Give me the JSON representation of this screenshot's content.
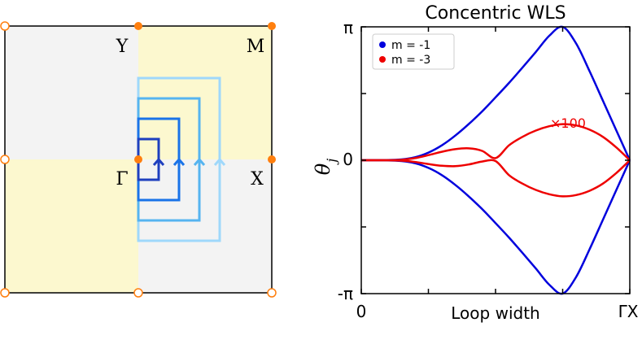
{
  "bz_panel": {
    "labels": {
      "Y": "Y",
      "M": "M",
      "Gamma": "Γ",
      "X": "X"
    },
    "colors": {
      "quadrant_yellow": "#fcf8cf",
      "quadrant_gray": "#f3f3f3",
      "filled_point": "#ff7f0e",
      "hollow_point": "#ff7f0e",
      "loops": [
        "#1e3fbf",
        "#1a73e8",
        "#56b4f0",
        "#9fd8fb"
      ]
    },
    "loop_count": 4
  },
  "chart_data": {
    "type": "line",
    "title": "Concentric WLS",
    "xlabel": "Loop width",
    "ylabel": "θ_j",
    "ylabel_main": "θ",
    "ylabel_sub": "j",
    "x_tick_labels": [
      "0",
      "ΓX"
    ],
    "y_tick_labels": [
      "-π",
      "0",
      "π"
    ],
    "xlim": [
      0,
      1
    ],
    "ylim": [
      -3.14159,
      3.14159
    ],
    "annotation": "×100",
    "legend_position": "top-left",
    "series": [
      {
        "name": "m = -1",
        "color": "#0000dd",
        "branches": [
          {
            "x": [
              0,
              0.05,
              0.1,
              0.15,
              0.2,
              0.25,
              0.3,
              0.35,
              0.4,
              0.45,
              0.5,
              0.55,
              0.6,
              0.65,
              0.7,
              0.75,
              0.8,
              0.85,
              0.9,
              0.95,
              1.0
            ],
            "y": [
              0,
              0,
              0.003,
              0.02,
              0.07,
              0.18,
              0.35,
              0.58,
              0.85,
              1.15,
              1.48,
              1.82,
              2.18,
              2.55,
              2.93,
              3.14,
              2.75,
              2.1,
              1.4,
              0.7,
              0
            ]
          },
          {
            "x": [
              0,
              0.05,
              0.1,
              0.15,
              0.2,
              0.25,
              0.3,
              0.35,
              0.4,
              0.45,
              0.5,
              0.55,
              0.6,
              0.65,
              0.7,
              0.75,
              0.8,
              0.85,
              0.9,
              0.95,
              1.0
            ],
            "y": [
              0,
              0,
              -0.003,
              -0.02,
              -0.07,
              -0.18,
              -0.35,
              -0.58,
              -0.85,
              -1.15,
              -1.48,
              -1.82,
              -2.18,
              -2.55,
              -2.93,
              -3.14,
              -2.75,
              -2.1,
              -1.4,
              -0.7,
              0
            ]
          }
        ]
      },
      {
        "name": "m = -3",
        "color": "#ee0000",
        "branches": [
          {
            "x": [
              0,
              0.1,
              0.15,
              0.2,
              0.25,
              0.3,
              0.35,
              0.4,
              0.45,
              0.5,
              0.55,
              0.6,
              0.65,
              0.7,
              0.75,
              0.8,
              0.85,
              0.9,
              0.95,
              1.0
            ],
            "y": [
              0,
              0,
              0.01,
              0.05,
              0.12,
              0.2,
              0.26,
              0.28,
              0.22,
              0.05,
              0.35,
              0.55,
              0.7,
              0.8,
              0.85,
              0.82,
              0.72,
              0.55,
              0.3,
              0
            ]
          },
          {
            "x": [
              0,
              0.1,
              0.15,
              0.2,
              0.25,
              0.3,
              0.35,
              0.4,
              0.45,
              0.5,
              0.55,
              0.6,
              0.65,
              0.7,
              0.75,
              0.8,
              0.85,
              0.9,
              0.95,
              1.0
            ],
            "y": [
              0,
              0,
              -0.01,
              -0.04,
              -0.09,
              -0.13,
              -0.14,
              -0.1,
              -0.03,
              -0.02,
              -0.35,
              -0.55,
              -0.7,
              -0.8,
              -0.85,
              -0.82,
              -0.72,
              -0.55,
              -0.3,
              0
            ]
          }
        ]
      }
    ]
  }
}
